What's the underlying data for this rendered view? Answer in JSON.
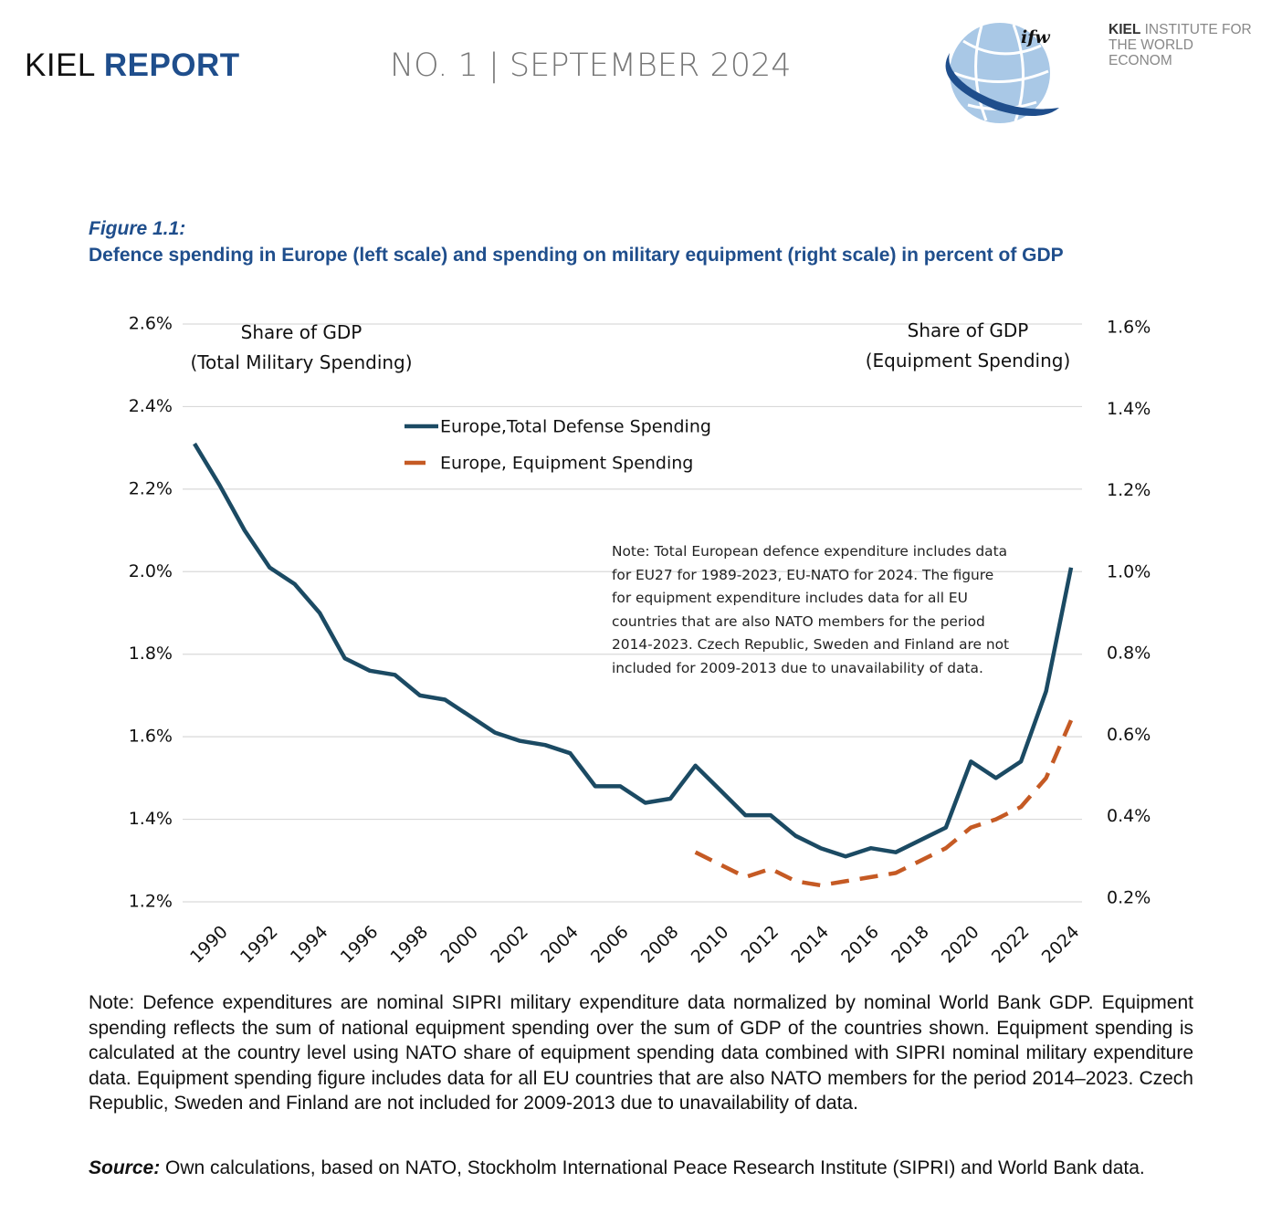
{
  "header": {
    "brand_light": "KIEL",
    "brand_bold": "REPORT",
    "issue": "NO. 1 | SEPTEMBER 2024",
    "logo_mark": "ifw",
    "institute_bold": "KIEL",
    "institute_rest": "INSTITUTE FOR",
    "institute_line2": "THE WORLD ECONOM"
  },
  "figure": {
    "label": "Figure 1.1:",
    "title": "Defence spending in Europe (left scale) and spending on military equipment (right scale) in percent of GDP"
  },
  "chart_data": {
    "type": "line",
    "ylabel": [
      "Share of GDP",
      "(Total Military Spending)"
    ],
    "y2label": [
      "Share of GDP",
      "(Equipment Spending)"
    ],
    "annotation": "Note: Total European defence expenditure includes data for EU27 for 1989-2023, EU-NATO for 2024. The figure for equipment expenditure includes data for all EU countries that are also NATO members for the period 2014-2023. Czech Republic, Sweden and Finland are not included for 2009-2013 due to unavailability of data.",
    "categories": [
      null,
      "1990",
      null,
      "1992",
      null,
      "1994",
      null,
      "1996",
      null,
      "1998",
      null,
      "2000",
      null,
      "2002",
      null,
      "2004",
      null,
      "2006",
      null,
      "2008",
      null,
      "2010",
      null,
      "2012",
      null,
      "2014",
      null,
      "2016",
      null,
      "2018",
      null,
      "2020",
      null,
      "2022",
      null,
      "2024"
    ],
    "series": [
      {
        "name": "Europe,Total Defense Spending",
        "color": "#1b4a63",
        "line_style": "solid",
        "values": [
          2.31,
          2.21,
          2.1,
          2.01,
          1.97,
          1.9,
          1.79,
          1.76,
          1.75,
          1.7,
          1.69,
          1.65,
          1.61,
          1.59,
          1.58,
          1.56,
          1.48,
          1.48,
          1.44,
          1.45,
          1.53,
          1.47,
          1.41,
          1.41,
          1.36,
          1.33,
          1.31,
          1.33,
          1.32,
          1.35,
          1.38,
          1.54,
          1.5,
          1.54,
          1.71,
          2.01
        ]
      },
      {
        "name": "Europe, Equipment Spending",
        "color": "#c55a24",
        "line_style": "dashed",
        "axis": "y2",
        "values": [
          null,
          null,
          null,
          null,
          null,
          null,
          null,
          null,
          null,
          null,
          null,
          null,
          null,
          null,
          null,
          null,
          null,
          null,
          null,
          null,
          0.32,
          0.29,
          0.26,
          0.28,
          0.25,
          0.24,
          0.25,
          0.26,
          0.27,
          0.3,
          0.33,
          0.38,
          0.4,
          0.43,
          0.5,
          0.64
        ]
      }
    ],
    "ylim": [
      1.2,
      2.6
    ],
    "yticks": [
      {
        "value": 1.2,
        "label": "1.2%"
      },
      {
        "value": 1.4,
        "label": "1.4%"
      },
      {
        "value": 1.6,
        "label": "1.6%"
      },
      {
        "value": 1.8,
        "label": "1.8%"
      },
      {
        "value": 2.0,
        "label": "2.0%"
      },
      {
        "value": 2.2,
        "label": "2.2%"
      },
      {
        "value": 2.4,
        "label": "2.4%"
      },
      {
        "value": 2.6,
        "label": "2.6%"
      }
    ],
    "y2lim": [
      0.2,
      1.6
    ],
    "y2ticks": [
      {
        "value": 0.2,
        "label": "0.2%"
      },
      {
        "value": 0.4,
        "label": "0.4%"
      },
      {
        "value": 0.6,
        "label": "0.6%"
      },
      {
        "value": 0.8,
        "label": "0.8%"
      },
      {
        "value": 1.0,
        "label": "1.0%"
      },
      {
        "value": 1.2,
        "label": "1.2%"
      },
      {
        "value": 1.4,
        "label": "1.4%"
      },
      {
        "value": 1.6,
        "label": "1.6%"
      }
    ],
    "grid": true
  },
  "note": "Note: Defence expenditures are nominal SIPRI military expenditure data normalized by nominal World Bank GDP. Equipment spending reflects the sum of national equipment spending over the sum of GDP of the countries shown. Equipment spending is calculated at the country level using NATO share of equipment spending data combined with SIPRI nominal military expenditure data. Equipment spending figure includes data for all EU countries that are also NATO members for the period 2014–2023. Czech Republic, Sweden and Finland are not included for 2009-2013 due to unavailability of data.",
  "source_label": "Source:",
  "source": "Own calculations, based on NATO, Stockholm International Peace Research Institute (SIPRI) and World Bank data."
}
